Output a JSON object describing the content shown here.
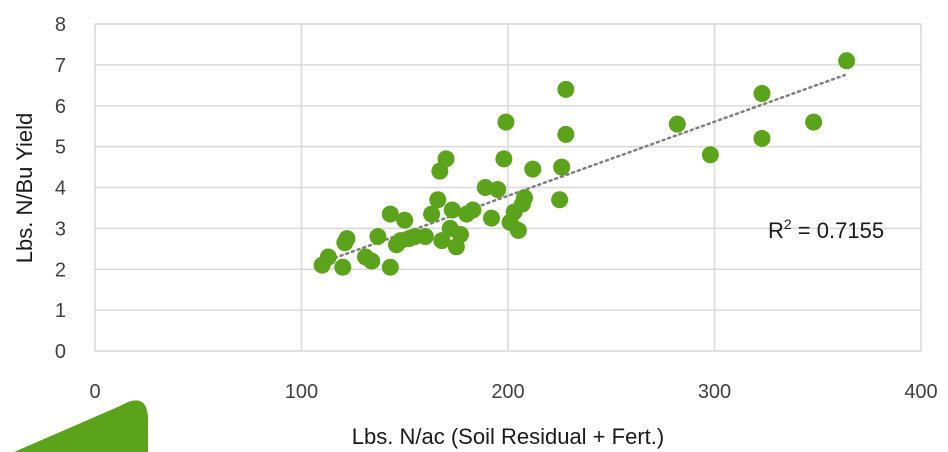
{
  "chart_data": {
    "type": "scatter",
    "xlabel": "Lbs. N/ac (Soil Residual + Fert.)",
    "ylabel": "Lbs. N/Bu Yield",
    "xlim": [
      0,
      400
    ],
    "ylim": [
      0,
      8
    ],
    "xticks": [
      0,
      100,
      200,
      300,
      400
    ],
    "yticks": [
      0,
      1,
      2,
      3,
      4,
      5,
      6,
      7,
      8
    ],
    "grid": true,
    "legend": "none",
    "colors": {
      "points": "#5ba31a",
      "trendline": "#808080",
      "grid": "#d9d9d9",
      "accent_shape": "#5ba31a"
    },
    "trendline": {
      "type": "linear",
      "style": "dotted",
      "x_range": [
        108,
        363
      ],
      "y_range": [
        2.13,
        6.75
      ]
    },
    "r_squared_label": "R",
    "r_squared_sup": "2",
    "r_squared_value": " = 0.7155",
    "series": [
      {
        "x": [
          110,
          113,
          120,
          122,
          121,
          131,
          134,
          137,
          143,
          143,
          146,
          148,
          150,
          152,
          155,
          160,
          163,
          166,
          167,
          168,
          170,
          172,
          173,
          175,
          177,
          180,
          183,
          189,
          192,
          195,
          198,
          199,
          201,
          203,
          205,
          207,
          208,
          212,
          225,
          226,
          228,
          228,
          282,
          298,
          323,
          323,
          348,
          364
        ],
        "y": [
          2.1,
          2.3,
          2.05,
          2.75,
          2.65,
          2.3,
          2.2,
          2.8,
          2.05,
          3.35,
          2.6,
          2.7,
          3.2,
          2.75,
          2.8,
          2.8,
          3.35,
          3.7,
          4.4,
          2.7,
          4.7,
          3.0,
          3.45,
          2.55,
          2.85,
          3.35,
          3.45,
          4.0,
          3.25,
          3.95,
          4.7,
          5.6,
          3.15,
          3.4,
          2.95,
          3.6,
          3.75,
          4.45,
          3.7,
          4.5,
          6.4,
          5.3,
          5.55,
          4.8,
          6.3,
          5.2,
          5.6,
          7.1
        ]
      }
    ]
  }
}
